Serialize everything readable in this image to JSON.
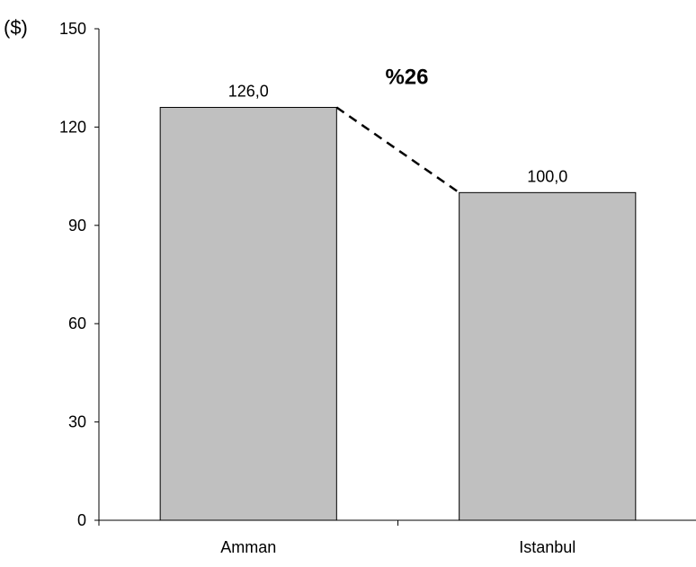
{
  "chart_data": {
    "type": "bar",
    "ylabel": "($)",
    "categories": [
      "Amman",
      "Istanbul"
    ],
    "values": [
      126.0,
      100.0
    ],
    "data_labels": [
      "126,0",
      "100,0"
    ],
    "yticks": [
      0,
      30,
      60,
      90,
      120,
      150
    ],
    "ylim": [
      0,
      150
    ],
    "grid": false,
    "bar_color": "#c0c0c0",
    "annotation": {
      "text": "%26",
      "from_category": "Amman",
      "to_category": "Istanbul",
      "line_style": "dashed"
    }
  }
}
